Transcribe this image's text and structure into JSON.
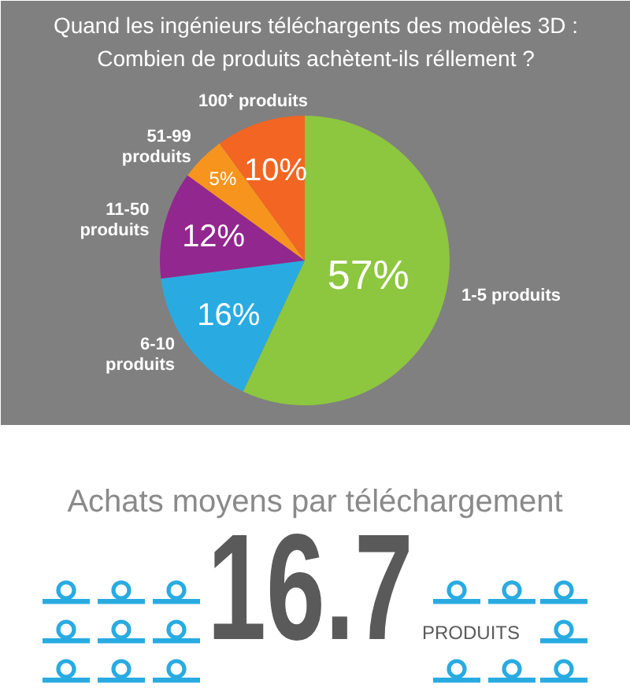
{
  "chart_data": [
    {
      "type": "pie",
      "title": "Quand les ingénieurs téléchargents des modèles 3D : Combien de produits achètent-ils réllement ?",
      "categories": [
        "1-5 produits",
        "6-10 produits",
        "11-50 produits",
        "51-99 produits",
        "100⁺ produits"
      ],
      "values": [
        57,
        16,
        12,
        5,
        10
      ],
      "colors": [
        "#8dc63f",
        "#29abe2",
        "#92278f",
        "#f7941d",
        "#f26522"
      ],
      "value_labels": [
        "57%",
        "16%",
        "12%",
        "5%",
        "10%"
      ]
    },
    {
      "type": "other",
      "title": "Achats moyens par téléchargement",
      "annotations": [
        "16.7",
        "PRODUITS"
      ]
    }
  ]
}
